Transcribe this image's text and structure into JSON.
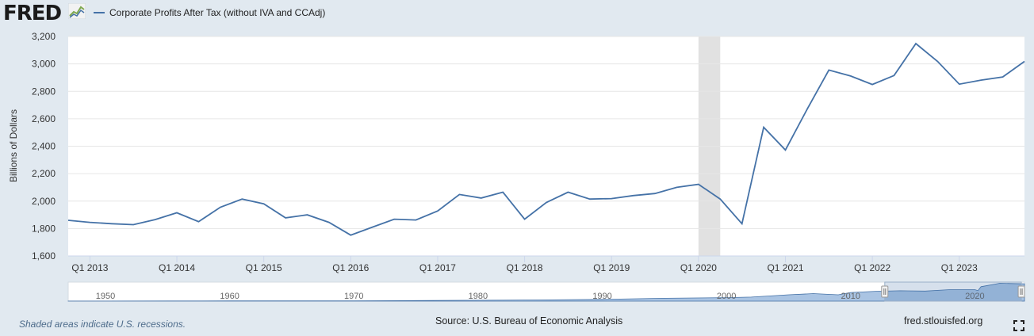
{
  "header": {
    "logo_text": "FRED",
    "legend_label": "Corporate Profits After Tax (without IVA and CCAdj)"
  },
  "colors": {
    "line": "#4572a7",
    "recession": "#e1e1e1",
    "background": "#e1e9f0",
    "grid": "#e6e6e6"
  },
  "chart_data": {
    "type": "line",
    "title": "Corporate Profits After Tax (without IVA and CCAdj)",
    "xlabel": "",
    "ylabel": "Billions of Dollars",
    "ylim": [
      1600,
      3200
    ],
    "y_ticks": [
      1600,
      1800,
      2000,
      2200,
      2400,
      2600,
      2800,
      3000,
      3200
    ],
    "y_tick_labels": [
      "1,600",
      "1,800",
      "2,000",
      "2,200",
      "2,400",
      "2,600",
      "2,800",
      "3,000",
      "3,200"
    ],
    "x_ticks": [
      2013,
      2014,
      2015,
      2016,
      2017,
      2018,
      2019,
      2020,
      2021,
      2022,
      2023
    ],
    "x_tick_labels": [
      "Q1 2013",
      "Q1 2014",
      "Q1 2015",
      "Q1 2016",
      "Q1 2017",
      "Q1 2018",
      "Q1 2019",
      "Q1 2020",
      "Q1 2021",
      "Q1 2022",
      "Q1 2023"
    ],
    "x_range": [
      2012.75,
      2023.75
    ],
    "recessions": [
      [
        2020.0,
        2020.25
      ]
    ],
    "series": [
      {
        "name": "Corporate Profits After Tax (without IVA and CCAdj)",
        "x": [
          2012.75,
          2013.0,
          2013.25,
          2013.5,
          2013.75,
          2014.0,
          2014.25,
          2014.5,
          2014.75,
          2015.0,
          2015.25,
          2015.5,
          2015.75,
          2016.0,
          2016.25,
          2016.5,
          2016.75,
          2017.0,
          2017.25,
          2017.5,
          2017.75,
          2018.0,
          2018.25,
          2018.5,
          2018.75,
          2019.0,
          2019.25,
          2019.5,
          2019.75,
          2020.0,
          2020.25,
          2020.5,
          2020.75,
          2021.0,
          2021.25,
          2021.5,
          2021.75,
          2022.0,
          2022.25,
          2022.5,
          2022.75,
          2023.0,
          2023.25,
          2023.5,
          2023.75
        ],
        "values": [
          1860,
          1845,
          1835,
          1828,
          1865,
          1915,
          1850,
          1955,
          2015,
          1980,
          1878,
          1900,
          1845,
          1752,
          1810,
          1868,
          1862,
          1928,
          2048,
          2022,
          2065,
          1868,
          1990,
          2065,
          2015,
          2018,
          2040,
          2055,
          2100,
          2122,
          2015,
          1835,
          2538,
          2372,
          2670,
          2955,
          2912,
          2850,
          2915,
          3148,
          3018,
          2852,
          2882,
          2905,
          3018
        ]
      }
    ],
    "navigator": {
      "tick_labels": [
        "1950",
        "1960",
        "1970",
        "1980",
        "1990",
        "2000",
        "2010",
        "2020"
      ],
      "years": [
        1950,
        1960,
        1970,
        1980,
        1990,
        2000,
        2010,
        2020
      ],
      "range": [
        1947,
        2024
      ],
      "selected": [
        2012.75,
        2023.75
      ],
      "shape_years": [
        1947,
        1950,
        1955,
        1960,
        1965,
        1970,
        1975,
        1980,
        1985,
        1990,
        1995,
        2000,
        2002,
        2005,
        2007,
        2009,
        2010,
        2012,
        2014,
        2016,
        2018,
        2020,
        2020.25,
        2020.5,
        2022,
        2024
      ],
      "shape_values": [
        15,
        20,
        30,
        35,
        50,
        60,
        100,
        150,
        200,
        300,
        500,
        600,
        700,
        1100,
        1300,
        1100,
        1500,
        1700,
        1800,
        1750,
        2000,
        2000,
        1835,
        2500,
        3100,
        3000
      ],
      "shape_max": 3300
    }
  },
  "footer": {
    "recession_note": "Shaded areas indicate U.S. recessions.",
    "source": "Source: U.S. Bureau of Economic Analysis",
    "url": "fred.stlouisfed.org"
  }
}
